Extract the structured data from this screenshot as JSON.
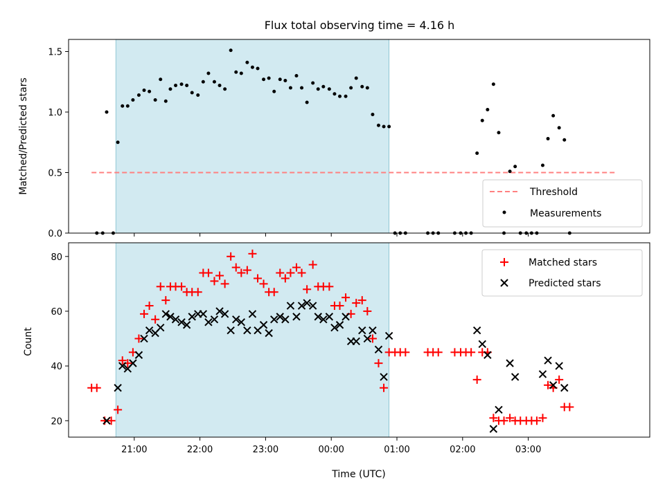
{
  "chart_data": [
    {
      "type": "scatter",
      "title": "Flux total observing time = 4.16 h",
      "xlabel": "",
      "ylabel": "Matched/Predicted stars",
      "ylim": [
        0,
        1.6
      ],
      "yticks": [
        {
          "v": 0.0,
          "label": "0.0"
        },
        {
          "v": 0.5,
          "label": "0.5"
        },
        {
          "v": 1.0,
          "label": "1.0"
        },
        {
          "v": 1.5,
          "label": "1.5"
        }
      ],
      "xlim_hours": [
        20.0,
        28.85
      ],
      "observing_band_hours": [
        20.72,
        24.88
      ],
      "band_color": "#add8e6",
      "legend_position": "lower-right",
      "threshold": {
        "name": "Threshold",
        "value": 0.5,
        "x_range_hours": [
          20.35,
          28.35
        ],
        "color": "#ff8080"
      },
      "series": [
        {
          "name": "Measurements",
          "color": "#000000",
          "marker": "dot",
          "points": [
            [
              20.43,
              0
            ],
            [
              20.52,
              0
            ],
            [
              20.58,
              1.0
            ],
            [
              20.68,
              0
            ],
            [
              20.75,
              0.75
            ],
            [
              20.82,
              1.05
            ],
            [
              20.9,
              1.05
            ],
            [
              20.98,
              1.1
            ],
            [
              21.07,
              1.14
            ],
            [
              21.15,
              1.18
            ],
            [
              21.23,
              1.17
            ],
            [
              21.32,
              1.1
            ],
            [
              21.4,
              1.27
            ],
            [
              21.48,
              1.09
            ],
            [
              21.55,
              1.19
            ],
            [
              21.63,
              1.22
            ],
            [
              21.72,
              1.23
            ],
            [
              21.8,
              1.22
            ],
            [
              21.88,
              1.16
            ],
            [
              21.97,
              1.14
            ],
            [
              22.05,
              1.25
            ],
            [
              22.13,
              1.32
            ],
            [
              22.22,
              1.25
            ],
            [
              22.3,
              1.22
            ],
            [
              22.38,
              1.19
            ],
            [
              22.47,
              1.51
            ],
            [
              22.55,
              1.33
            ],
            [
              22.63,
              1.32
            ],
            [
              22.72,
              1.41
            ],
            [
              22.8,
              1.37
            ],
            [
              22.88,
              1.36
            ],
            [
              22.97,
              1.27
            ],
            [
              23.05,
              1.28
            ],
            [
              23.13,
              1.17
            ],
            [
              23.22,
              1.27
            ],
            [
              23.3,
              1.26
            ],
            [
              23.38,
              1.2
            ],
            [
              23.47,
              1.3
            ],
            [
              23.55,
              1.2
            ],
            [
              23.63,
              1.08
            ],
            [
              23.72,
              1.24
            ],
            [
              23.8,
              1.19
            ],
            [
              23.88,
              1.21
            ],
            [
              23.97,
              1.19
            ],
            [
              24.05,
              1.15
            ],
            [
              24.13,
              1.13
            ],
            [
              24.22,
              1.13
            ],
            [
              24.3,
              1.2
            ],
            [
              24.38,
              1.28
            ],
            [
              24.47,
              1.21
            ],
            [
              24.55,
              1.2
            ],
            [
              24.63,
              0.98
            ],
            [
              24.72,
              0.89
            ],
            [
              24.8,
              0.88
            ],
            [
              24.88,
              0.88
            ],
            [
              24.97,
              0
            ],
            [
              25.05,
              0
            ],
            [
              25.13,
              0
            ],
            [
              25.47,
              0
            ],
            [
              25.55,
              0
            ],
            [
              25.63,
              0
            ],
            [
              25.88,
              0
            ],
            [
              25.97,
              0
            ],
            [
              26.05,
              0
            ],
            [
              26.13,
              0
            ],
            [
              26.22,
              0.66
            ],
            [
              26.3,
              0.93
            ],
            [
              26.38,
              1.02
            ],
            [
              26.47,
              1.23
            ],
            [
              26.55,
              0.83
            ],
            [
              26.63,
              0
            ],
            [
              26.72,
              0.51
            ],
            [
              26.8,
              0.55
            ],
            [
              26.88,
              0
            ],
            [
              26.97,
              0
            ],
            [
              27.05,
              0
            ],
            [
              27.13,
              0
            ],
            [
              27.22,
              0.56
            ],
            [
              27.3,
              0.78
            ],
            [
              27.38,
              0.97
            ],
            [
              27.47,
              0.87
            ],
            [
              27.55,
              0.77
            ],
            [
              27.63,
              0
            ]
          ]
        }
      ]
    },
    {
      "type": "scatter",
      "title": "",
      "xlabel": "Time (UTC)",
      "ylabel": "Count",
      "ylim": [
        14,
        85
      ],
      "yticks": [
        {
          "v": 20,
          "label": "20"
        },
        {
          "v": 40,
          "label": "40"
        },
        {
          "v": 60,
          "label": "60"
        },
        {
          "v": 80,
          "label": "80"
        }
      ],
      "xlim_hours": [
        20.0,
        28.85
      ],
      "xticks": [
        {
          "v": 21,
          "label": "21:00"
        },
        {
          "v": 22,
          "label": "22:00"
        },
        {
          "v": 23,
          "label": "23:00"
        },
        {
          "v": 24,
          "label": "00:00"
        },
        {
          "v": 25,
          "label": "01:00"
        },
        {
          "v": 26,
          "label": "02:00"
        },
        {
          "v": 27,
          "label": "03:00"
        }
      ],
      "observing_band_hours": [
        20.72,
        24.88
      ],
      "band_color": "#add8e6",
      "legend_position": "upper-right",
      "series": [
        {
          "name": "Matched stars",
          "color": "#ff0000",
          "marker": "plus",
          "points": [
            [
              20.35,
              32
            ],
            [
              20.43,
              32
            ],
            [
              20.55,
              20
            ],
            [
              20.65,
              20
            ],
            [
              20.75,
              24
            ],
            [
              20.82,
              42
            ],
            [
              20.9,
              41
            ],
            [
              20.98,
              45
            ],
            [
              21.07,
              50
            ],
            [
              21.15,
              59
            ],
            [
              21.23,
              62
            ],
            [
              21.32,
              57
            ],
            [
              21.4,
              69
            ],
            [
              21.48,
              64
            ],
            [
              21.55,
              69
            ],
            [
              21.63,
              69
            ],
            [
              21.72,
              69
            ],
            [
              21.8,
              67
            ],
            [
              21.88,
              67
            ],
            [
              21.97,
              67
            ],
            [
              22.05,
              74
            ],
            [
              22.13,
              74
            ],
            [
              22.22,
              71
            ],
            [
              22.3,
              73
            ],
            [
              22.38,
              70
            ],
            [
              22.47,
              80
            ],
            [
              22.55,
              76
            ],
            [
              22.63,
              74
            ],
            [
              22.72,
              75
            ],
            [
              22.8,
              81
            ],
            [
              22.88,
              72
            ],
            [
              22.97,
              70
            ],
            [
              23.05,
              67
            ],
            [
              23.13,
              67
            ],
            [
              23.22,
              74
            ],
            [
              23.3,
              72
            ],
            [
              23.38,
              74
            ],
            [
              23.47,
              76
            ],
            [
              23.55,
              74
            ],
            [
              23.63,
              68
            ],
            [
              23.72,
              77
            ],
            [
              23.8,
              69
            ],
            [
              23.88,
              69
            ],
            [
              23.97,
              69
            ],
            [
              24.05,
              62
            ],
            [
              24.13,
              62
            ],
            [
              24.22,
              65
            ],
            [
              24.3,
              59
            ],
            [
              24.38,
              63
            ],
            [
              24.47,
              64
            ],
            [
              24.55,
              60
            ],
            [
              24.63,
              50
            ],
            [
              24.72,
              41
            ],
            [
              24.8,
              32
            ],
            [
              24.88,
              45
            ],
            [
              24.97,
              45
            ],
            [
              25.05,
              45
            ],
            [
              25.13,
              45
            ],
            [
              25.47,
              45
            ],
            [
              25.55,
              45
            ],
            [
              25.63,
              45
            ],
            [
              25.88,
              45
            ],
            [
              25.97,
              45
            ],
            [
              26.05,
              45
            ],
            [
              26.13,
              45
            ],
            [
              26.22,
              35
            ],
            [
              26.3,
              45
            ],
            [
              26.38,
              45
            ],
            [
              26.47,
              21
            ],
            [
              26.55,
              20
            ],
            [
              26.63,
              20
            ],
            [
              26.72,
              21
            ],
            [
              26.8,
              20
            ],
            [
              26.88,
              20
            ],
            [
              26.97,
              20
            ],
            [
              27.05,
              20
            ],
            [
              27.13,
              20
            ],
            [
              27.22,
              21
            ],
            [
              27.3,
              33
            ],
            [
              27.38,
              32
            ],
            [
              27.47,
              35
            ],
            [
              27.55,
              25
            ],
            [
              27.63,
              25
            ]
          ]
        },
        {
          "name": "Predicted stars",
          "color": "#000000",
          "marker": "x",
          "points": [
            [
              20.58,
              20
            ],
            [
              20.75,
              32
            ],
            [
              20.82,
              40
            ],
            [
              20.9,
              39
            ],
            [
              20.98,
              41
            ],
            [
              21.07,
              44
            ],
            [
              21.15,
              50
            ],
            [
              21.23,
              53
            ],
            [
              21.32,
              52
            ],
            [
              21.4,
              54
            ],
            [
              21.48,
              59
            ],
            [
              21.55,
              58
            ],
            [
              21.63,
              57
            ],
            [
              21.72,
              56
            ],
            [
              21.8,
              55
            ],
            [
              21.88,
              58
            ],
            [
              21.97,
              59
            ],
            [
              22.05,
              59
            ],
            [
              22.13,
              56
            ],
            [
              22.22,
              57
            ],
            [
              22.3,
              60
            ],
            [
              22.38,
              59
            ],
            [
              22.47,
              53
            ],
            [
              22.55,
              57
            ],
            [
              22.63,
              56
            ],
            [
              22.72,
              53
            ],
            [
              22.8,
              59
            ],
            [
              22.88,
              53
            ],
            [
              22.97,
              55
            ],
            [
              23.05,
              52
            ],
            [
              23.13,
              57
            ],
            [
              23.22,
              58
            ],
            [
              23.3,
              57
            ],
            [
              23.38,
              62
            ],
            [
              23.47,
              58
            ],
            [
              23.55,
              62
            ],
            [
              23.63,
              63
            ],
            [
              23.72,
              62
            ],
            [
              23.8,
              58
            ],
            [
              23.88,
              57
            ],
            [
              23.97,
              58
            ],
            [
              24.05,
              54
            ],
            [
              24.13,
              55
            ],
            [
              24.22,
              58
            ],
            [
              24.3,
              49
            ],
            [
              24.38,
              49
            ],
            [
              24.47,
              53
            ],
            [
              24.55,
              50
            ],
            [
              24.63,
              53
            ],
            [
              24.72,
              46
            ],
            [
              24.8,
              36
            ],
            [
              24.88,
              51
            ],
            [
              26.22,
              53
            ],
            [
              26.3,
              48
            ],
            [
              26.38,
              44
            ],
            [
              26.47,
              17
            ],
            [
              26.55,
              24
            ],
            [
              26.72,
              41
            ],
            [
              26.8,
              36
            ],
            [
              27.22,
              37
            ],
            [
              27.3,
              42
            ],
            [
              27.38,
              33
            ],
            [
              27.47,
              40
            ],
            [
              27.55,
              32
            ]
          ]
        }
      ]
    }
  ]
}
